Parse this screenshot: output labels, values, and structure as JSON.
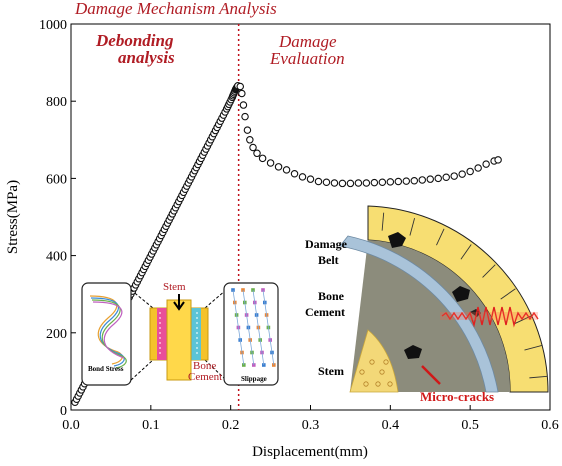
{
  "chart_data": {
    "type": "scatter",
    "title": "Damage Mechanism Analysis",
    "xlabel": "Displacement(mm)",
    "ylabel": "Stress(MPa)",
    "xlim": [
      0.0,
      0.6
    ],
    "ylim": [
      0,
      1000
    ],
    "xticks": [
      "0.0",
      "0.1",
      "0.2",
      "0.3",
      "0.4",
      "0.5",
      "0.6"
    ],
    "yticks": [
      "0",
      "200",
      "400",
      "600",
      "800",
      "1000"
    ],
    "divider_x": 0.21,
    "region_labels": {
      "left": [
        "Debonding",
        "analysis"
      ],
      "right": [
        "Damage",
        "Evaluation"
      ]
    },
    "series": [
      {
        "points": [
          [
            0.005,
            20
          ],
          [
            0.015,
            60
          ],
          [
            0.025,
            100
          ],
          [
            0.035,
            140
          ],
          [
            0.045,
            180
          ],
          [
            0.055,
            220
          ],
          [
            0.065,
            260
          ],
          [
            0.075,
            300
          ],
          [
            0.085,
            340
          ],
          [
            0.095,
            380
          ],
          [
            0.105,
            420
          ],
          [
            0.115,
            460
          ],
          [
            0.125,
            500
          ],
          [
            0.135,
            540
          ],
          [
            0.145,
            580
          ],
          [
            0.155,
            620
          ],
          [
            0.165,
            660
          ],
          [
            0.175,
            700
          ],
          [
            0.185,
            740
          ],
          [
            0.195,
            780
          ],
          [
            0.202,
            810
          ],
          [
            0.206,
            830
          ],
          [
            0.209,
            840
          ],
          [
            0.212,
            838
          ],
          [
            0.214,
            820
          ],
          [
            0.216,
            790
          ],
          [
            0.218,
            760
          ],
          [
            0.221,
            725
          ],
          [
            0.224,
            700
          ],
          [
            0.228,
            680
          ],
          [
            0.233,
            665
          ],
          [
            0.24,
            652
          ],
          [
            0.25,
            640
          ],
          [
            0.26,
            630
          ],
          [
            0.27,
            622
          ],
          [
            0.28,
            612
          ],
          [
            0.29,
            604
          ],
          [
            0.3,
            598
          ],
          [
            0.31,
            592
          ],
          [
            0.32,
            590
          ],
          [
            0.33,
            588
          ],
          [
            0.34,
            587
          ],
          [
            0.35,
            587
          ],
          [
            0.36,
            588
          ],
          [
            0.37,
            588
          ],
          [
            0.38,
            589
          ],
          [
            0.39,
            590
          ],
          [
            0.4,
            591
          ],
          [
            0.41,
            592
          ],
          [
            0.42,
            593
          ],
          [
            0.43,
            594
          ],
          [
            0.44,
            596
          ],
          [
            0.45,
            598
          ],
          [
            0.46,
            600
          ],
          [
            0.47,
            603
          ],
          [
            0.48,
            606
          ],
          [
            0.49,
            611
          ],
          [
            0.5,
            618
          ],
          [
            0.51,
            627
          ],
          [
            0.52,
            637
          ],
          [
            0.53,
            645
          ],
          [
            0.535,
            648
          ]
        ]
      }
    ]
  },
  "inset_left": {
    "bond_stress_label": "Bond Stress",
    "stem_label": "Stem",
    "bone_cement_label": [
      "Bone",
      "Cement"
    ],
    "slippage_label": "Slippage"
  },
  "inset_right": {
    "damage_belt_label": [
      "Damage",
      "Belt"
    ],
    "bone_cement_label": [
      "Bone",
      "Cement"
    ],
    "stem_label": "Stem",
    "micro_cracks_label": "Micro-cracks"
  },
  "colors": {
    "accent_red": "#b01c24",
    "divider": "#c0101a",
    "marker": "#111111",
    "belt_yellow": "#f7de72",
    "cement_gray": "#8c8c7c",
    "stem_blue": "#a9c3d9"
  }
}
